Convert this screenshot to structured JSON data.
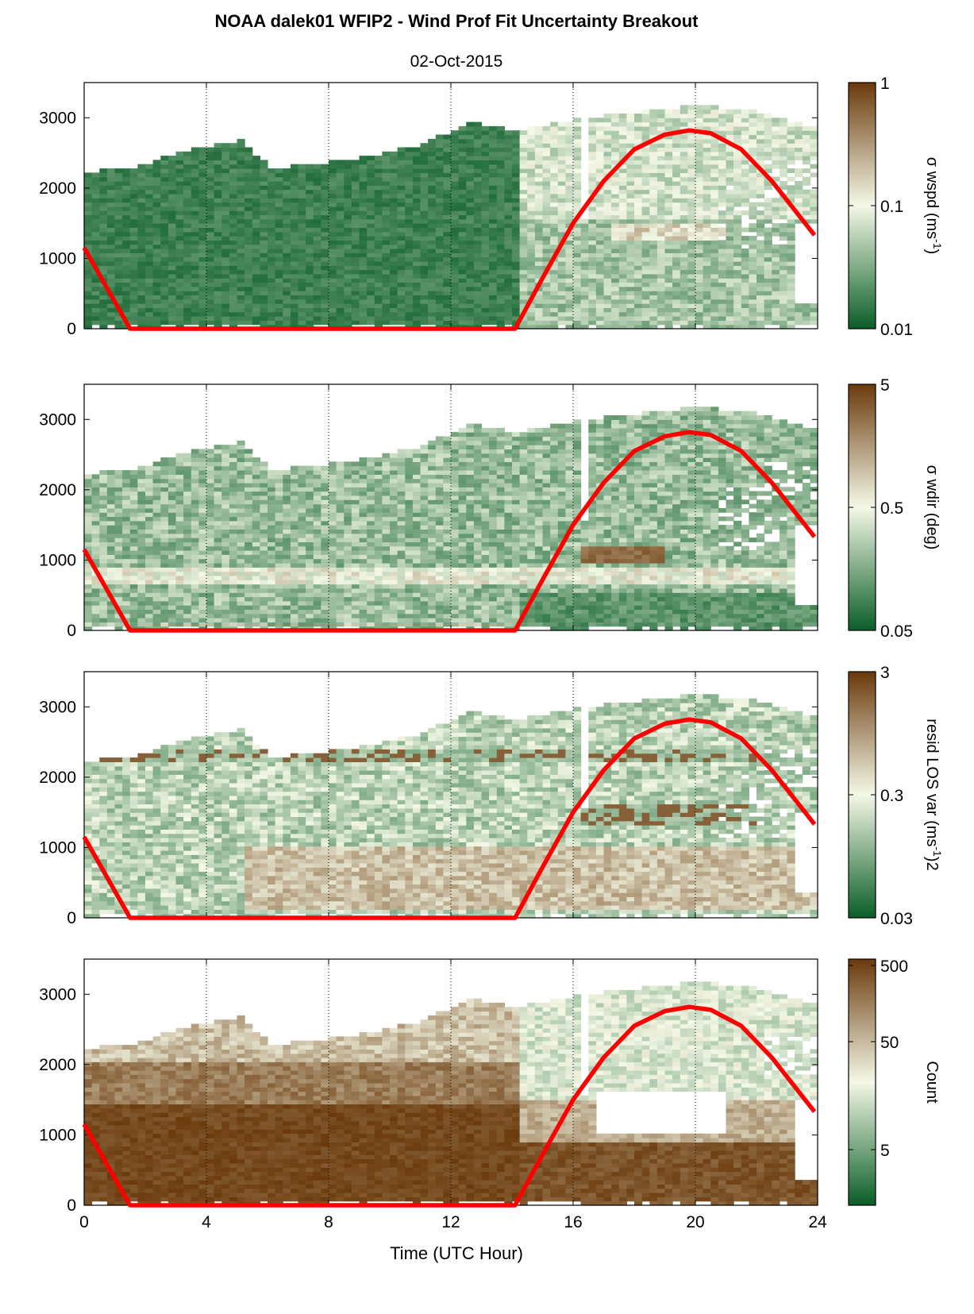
{
  "title": "NOAA dalek01 WFIP2 - Wind Prof Fit Uncertainty Breakout",
  "subtitle": "02-Oct-2015",
  "xlabel": "Time (UTC Hour)",
  "colors": {
    "low": "#0b5e28",
    "mid": "#f4f8e6",
    "high": "#6b3a0c",
    "overlay": "#ff0000"
  },
  "chart_data": [
    {
      "type": "heatmap",
      "xlim": [
        0,
        24
      ],
      "ylim": [
        0,
        3500
      ],
      "xticks": [
        0,
        4,
        8,
        12,
        16,
        20,
        24
      ],
      "yticks": [
        0,
        1000,
        2000,
        3000
      ],
      "grid": "vertical dotted",
      "colorbar": {
        "label": "σ wspd (ms-1)",
        "label_main": "σ wspd (ms",
        "label_sup": "-1",
        "label_end": ")",
        "scale": "log",
        "ticks": [
          "0.01",
          "0.1",
          "1"
        ]
      },
      "overlay_line": {
        "x": [
          0,
          1.5,
          14.1,
          15,
          16,
          17,
          18,
          19,
          19.8,
          20.5,
          21.5,
          22.5,
          23.9
        ],
        "y": [
          1150,
          0,
          0,
          720,
          1500,
          2100,
          2550,
          2760,
          2820,
          2780,
          2550,
          2100,
          1330
        ]
      }
    },
    {
      "type": "heatmap",
      "xlim": [
        0,
        24
      ],
      "ylim": [
        0,
        3500
      ],
      "xticks": [
        0,
        4,
        8,
        12,
        16,
        20,
        24
      ],
      "yticks": [
        0,
        1000,
        2000,
        3000
      ],
      "grid": "vertical dotted",
      "colorbar": {
        "label": "σ wdir (deg)",
        "label_main": "σ wdir (deg)",
        "label_sup": "",
        "label_end": "",
        "scale": "log",
        "ticks": [
          "0.05",
          "0.5",
          "5"
        ]
      },
      "overlay_line": {
        "x": [
          0,
          1.5,
          14.1,
          15,
          16,
          17,
          18,
          19,
          19.8,
          20.5,
          21.5,
          22.5,
          23.9
        ],
        "y": [
          1150,
          0,
          0,
          720,
          1500,
          2100,
          2550,
          2760,
          2820,
          2780,
          2550,
          2100,
          1330
        ]
      }
    },
    {
      "type": "heatmap",
      "xlim": [
        0,
        24
      ],
      "ylim": [
        0,
        3500
      ],
      "xticks": [
        0,
        4,
        8,
        12,
        16,
        20,
        24
      ],
      "yticks": [
        0,
        1000,
        2000,
        3000
      ],
      "grid": "vertical dotted",
      "colorbar": {
        "label": "resid LOS var (ms-1)2",
        "label_main": "resid LOS var (ms",
        "label_sup": "-1",
        "label_end": ")2",
        "scale": "log",
        "ticks": [
          "0.03",
          "0.3",
          "3"
        ]
      },
      "overlay_line": {
        "x": [
          0,
          1.5,
          14.1,
          15,
          16,
          17,
          18,
          19,
          19.8,
          20.5,
          21.5,
          22.5,
          23.9
        ],
        "y": [
          1150,
          0,
          0,
          720,
          1500,
          2100,
          2550,
          2760,
          2820,
          2780,
          2550,
          2100,
          1330
        ]
      }
    },
    {
      "type": "heatmap",
      "xlim": [
        0,
        24
      ],
      "ylim": [
        0,
        3500
      ],
      "xticks": [
        0,
        4,
        8,
        12,
        16,
        20,
        24
      ],
      "yticks": [
        0,
        1000,
        2000,
        3000
      ],
      "grid": "vertical dotted",
      "colorbar": {
        "label": "Count",
        "label_main": "Count",
        "label_sup": "",
        "label_end": "",
        "scale": "log",
        "ticks": [
          "5",
          "50",
          "500"
        ]
      },
      "overlay_line": {
        "x": [
          0,
          1.5,
          14.1,
          15,
          16,
          17,
          18,
          19,
          19.8,
          20.5,
          21.5,
          22.5,
          23.9
        ],
        "y": [
          1150,
          0,
          0,
          720,
          1500,
          2100,
          2550,
          2760,
          2820,
          2780,
          2550,
          2100,
          1330
        ]
      }
    }
  ]
}
